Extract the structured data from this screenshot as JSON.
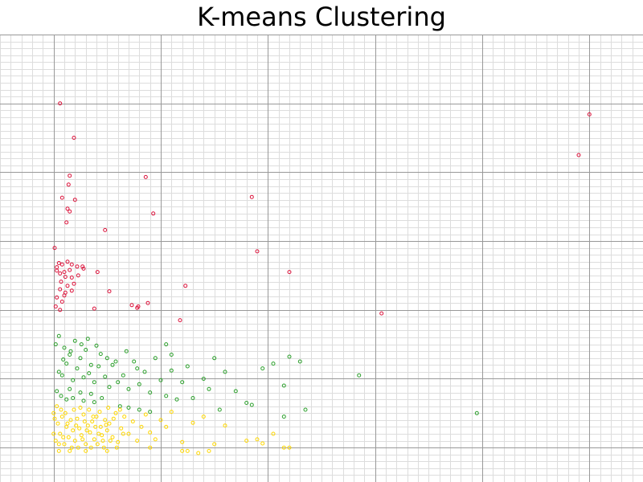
{
  "chart_data": {
    "type": "scatter",
    "title": "K-means Clustering",
    "xlabel": "",
    "ylabel": "",
    "xlim": [
      -0.5,
      5.5
    ],
    "ylim": [
      -0.5,
      6.0
    ],
    "grid": true,
    "colors": {
      "cluster_0": "#dc143c",
      "cluster_1": "#2ca02c",
      "cluster_2": "#ffd700",
      "major_grid": "#999999",
      "minor_grid": "#dddddd"
    },
    "series": [
      {
        "color": "#dc143c",
        "points": [
          [
            0.06,
            5.0
          ],
          [
            0.19,
            4.5
          ],
          [
            0.15,
            3.95
          ],
          [
            0.14,
            3.82
          ],
          [
            0.08,
            3.63
          ],
          [
            0.2,
            3.6
          ],
          [
            0.13,
            3.47
          ],
          [
            0.15,
            3.43
          ],
          [
            0.12,
            3.27
          ],
          [
            0.86,
            3.93
          ],
          [
            0.93,
            3.4
          ],
          [
            1.85,
            3.64
          ],
          [
            0.48,
            3.16
          ],
          [
            0.01,
            2.9
          ],
          [
            1.9,
            2.85
          ],
          [
            2.2,
            2.55
          ],
          [
            4.9,
            4.25
          ],
          [
            5.0,
            4.84
          ],
          [
            3.06,
            1.95
          ],
          [
            1.23,
            2.35
          ],
          [
            1.18,
            1.85
          ],
          [
            0.03,
            2.62
          ],
          [
            0.05,
            2.68
          ],
          [
            0.08,
            2.66
          ],
          [
            0.13,
            2.7
          ],
          [
            0.17,
            2.66
          ],
          [
            0.22,
            2.63
          ],
          [
            0.27,
            2.63
          ],
          [
            0.28,
            2.6
          ],
          [
            0.03,
            2.57
          ],
          [
            0.06,
            2.53
          ],
          [
            0.1,
            2.55
          ],
          [
            0.15,
            2.58
          ],
          [
            0.11,
            2.48
          ],
          [
            0.17,
            2.47
          ],
          [
            0.23,
            2.5
          ],
          [
            0.07,
            2.41
          ],
          [
            0.13,
            2.35
          ],
          [
            0.19,
            2.38
          ],
          [
            0.06,
            2.3
          ],
          [
            0.11,
            2.25
          ],
          [
            0.17,
            2.28
          ],
          [
            0.1,
            2.21
          ],
          [
            0.03,
            2.18
          ],
          [
            0.08,
            2.12
          ],
          [
            0.41,
            2.55
          ],
          [
            0.52,
            2.27
          ],
          [
            0.38,
            2.02
          ],
          [
            0.73,
            2.07
          ],
          [
            0.78,
            2.03
          ],
          [
            0.79,
            2.05
          ],
          [
            0.88,
            2.1
          ],
          [
            0.02,
            2.05
          ],
          [
            0.06,
            2.0
          ]
        ]
      },
      {
        "color": "#2ca02c",
        "points": [
          [
            0.02,
            1.5
          ],
          [
            0.05,
            1.62
          ],
          [
            0.1,
            1.45
          ],
          [
            0.15,
            1.35
          ],
          [
            0.2,
            1.55
          ],
          [
            0.25,
            1.3
          ],
          [
            0.3,
            1.42
          ],
          [
            0.35,
            1.2
          ],
          [
            0.4,
            1.48
          ],
          [
            0.05,
            1.1
          ],
          [
            0.08,
            1.05
          ],
          [
            0.12,
            1.22
          ],
          [
            0.18,
            0.98
          ],
          [
            0.22,
            1.15
          ],
          [
            0.28,
            1.02
          ],
          [
            0.33,
            1.08
          ],
          [
            0.38,
            0.95
          ],
          [
            0.42,
            1.18
          ],
          [
            0.48,
            1.03
          ],
          [
            0.52,
            0.88
          ],
          [
            0.55,
            1.2
          ],
          [
            0.6,
            0.95
          ],
          [
            0.65,
            1.05
          ],
          [
            0.7,
            0.85
          ],
          [
            0.75,
            1.25
          ],
          [
            0.8,
            0.92
          ],
          [
            0.85,
            1.1
          ],
          [
            0.9,
            0.8
          ],
          [
            0.95,
            1.3
          ],
          [
            1.0,
            0.98
          ],
          [
            1.05,
            0.75
          ],
          [
            1.1,
            1.12
          ],
          [
            1.15,
            0.7
          ],
          [
            1.2,
            0.95
          ],
          [
            1.25,
            1.18
          ],
          [
            1.3,
            0.72
          ],
          [
            1.4,
            1.0
          ],
          [
            1.45,
            0.85
          ],
          [
            1.5,
            1.3
          ],
          [
            1.55,
            0.55
          ],
          [
            1.6,
            1.1
          ],
          [
            1.7,
            0.82
          ],
          [
            1.8,
            0.65
          ],
          [
            1.85,
            0.62
          ],
          [
            1.95,
            1.15
          ],
          [
            2.05,
            1.22
          ],
          [
            2.15,
            0.9
          ],
          [
            2.2,
            1.32
          ],
          [
            2.3,
            1.25
          ],
          [
            1.05,
            1.5
          ],
          [
            1.1,
            1.35
          ],
          [
            0.15,
            0.85
          ],
          [
            0.25,
            0.8
          ],
          [
            0.35,
            0.78
          ],
          [
            0.45,
            0.72
          ],
          [
            0.03,
            0.82
          ],
          [
            0.07,
            0.75
          ],
          [
            0.12,
            0.7
          ],
          [
            0.18,
            0.72
          ],
          [
            0.28,
            0.68
          ],
          [
            0.38,
            0.66
          ],
          [
            0.62,
            0.6
          ],
          [
            0.7,
            0.58
          ],
          [
            0.8,
            0.55
          ],
          [
            0.9,
            0.52
          ],
          [
            2.15,
            0.45
          ],
          [
            2.35,
            0.55
          ],
          [
            2.85,
            1.05
          ],
          [
            3.95,
            0.5
          ],
          [
            0.09,
            1.28
          ],
          [
            0.16,
            1.4
          ],
          [
            0.26,
            1.5
          ],
          [
            0.32,
            1.58
          ],
          [
            0.44,
            1.36
          ],
          [
            0.5,
            1.3
          ],
          [
            0.58,
            1.25
          ],
          [
            0.68,
            1.4
          ],
          [
            0.78,
            1.15
          ]
        ]
      },
      {
        "color": "#ffd700",
        "points": [
          [
            0.0,
            0.5
          ],
          [
            0.02,
            0.1
          ],
          [
            0.04,
            0.35
          ],
          [
            0.06,
            0.2
          ],
          [
            0.08,
            0.45
          ],
          [
            0.1,
            0.05
          ],
          [
            0.12,
            0.3
          ],
          [
            0.14,
            0.15
          ],
          [
            0.16,
            0.4
          ],
          [
            0.18,
            0.25
          ],
          [
            0.2,
            0.1
          ],
          [
            0.22,
            0.42
          ],
          [
            0.24,
            0.28
          ],
          [
            0.26,
            0.18
          ],
          [
            0.28,
            0.48
          ],
          [
            0.3,
            0.05
          ],
          [
            0.32,
            0.32
          ],
          [
            0.34,
            0.22
          ],
          [
            0.36,
            0.38
          ],
          [
            0.38,
            0.12
          ],
          [
            0.4,
            0.45
          ],
          [
            0.42,
            0.2
          ],
          [
            0.44,
            0.3
          ],
          [
            0.46,
            0.1
          ],
          [
            0.48,
            0.4
          ],
          [
            0.5,
            0.25
          ],
          [
            0.52,
            0.35
          ],
          [
            0.55,
            0.15
          ],
          [
            0.58,
            0.5
          ],
          [
            0.6,
            0.08
          ],
          [
            0.63,
            0.28
          ],
          [
            0.66,
            0.45
          ],
          [
            0.7,
            0.2
          ],
          [
            0.74,
            0.38
          ],
          [
            0.78,
            0.1
          ],
          [
            0.82,
            0.3
          ],
          [
            0.86,
            0.48
          ],
          [
            0.9,
            0.22
          ],
          [
            0.95,
            0.12
          ],
          [
            1.0,
            0.4
          ],
          [
            1.05,
            0.3
          ],
          [
            1.1,
            0.52
          ],
          [
            1.2,
            0.08
          ],
          [
            1.3,
            0.36
          ],
          [
            1.4,
            0.45
          ],
          [
            1.5,
            0.05
          ],
          [
            1.6,
            0.32
          ],
          [
            1.8,
            0.1
          ],
          [
            1.9,
            0.12
          ],
          [
            1.95,
            0.06
          ],
          [
            2.05,
            0.2
          ],
          [
            2.15,
            0.0
          ],
          [
            2.2,
            0.0
          ],
          [
            0.9,
            0.0
          ],
          [
            1.2,
            -0.05
          ],
          [
            1.25,
            -0.05
          ],
          [
            1.35,
            -0.08
          ],
          [
            1.45,
            -0.05
          ],
          [
            0.5,
            -0.05
          ],
          [
            0.3,
            -0.05
          ],
          [
            0.15,
            -0.05
          ],
          [
            0.05,
            -0.05
          ],
          [
            0.0,
            0.2
          ],
          [
            0.01,
            0.42
          ],
          [
            0.03,
            0.6
          ],
          [
            0.05,
            0.05
          ],
          [
            0.07,
            0.55
          ],
          [
            0.09,
            0.15
          ],
          [
            0.11,
            0.5
          ],
          [
            0.13,
            0.35
          ],
          [
            0.17,
            0.0
          ],
          [
            0.19,
            0.55
          ],
          [
            0.21,
            0.32
          ],
          [
            0.23,
            0.0
          ],
          [
            0.25,
            0.58
          ],
          [
            0.27,
            0.12
          ],
          [
            0.29,
            0.38
          ],
          [
            0.31,
            0.25
          ],
          [
            0.33,
            0.55
          ],
          [
            0.35,
            0.0
          ],
          [
            0.37,
            0.45
          ],
          [
            0.39,
            0.3
          ],
          [
            0.41,
            0.05
          ],
          [
            0.43,
            0.52
          ],
          [
            0.45,
            0.18
          ],
          [
            0.47,
            0.0
          ],
          [
            0.49,
            0.33
          ],
          [
            0.51,
            0.58
          ],
          [
            0.53,
            0.1
          ],
          [
            0.56,
            0.42
          ],
          [
            0.59,
            0.0
          ],
          [
            0.62,
            0.55
          ],
          [
            0.65,
            0.2
          ]
        ]
      }
    ]
  }
}
